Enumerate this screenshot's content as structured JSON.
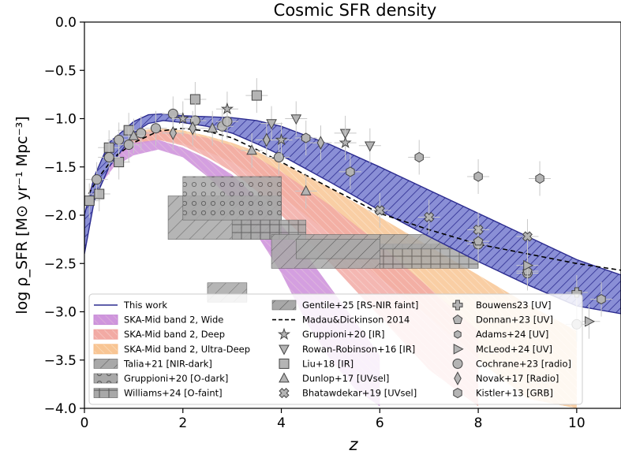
{
  "chart_data": {
    "type": "line",
    "title": "Cosmic SFR density",
    "xlabel": "z",
    "ylabel": "log ρ_SFR [M⊙ yr⁻¹ Mpc⁻³]",
    "xlim": [
      0,
      10.9
    ],
    "ylim": [
      -4.0,
      0.0
    ],
    "xticks": [
      "0",
      "2",
      "4",
      "6",
      "8",
      "10"
    ],
    "yticks": [
      "0.0",
      "−0.5",
      "−1.0",
      "−1.5",
      "−2.0",
      "−2.5",
      "−3.0",
      "−3.5",
      "−4.0"
    ],
    "grid": false,
    "legend_position": "bottom",
    "colors": {
      "this_work": "#2b2b8f",
      "wide": "#c58ad6",
      "deep": "#f0a5a0",
      "ultradeep": "#f7c08c",
      "markers": "#b0b0b0"
    },
    "this_work_band": {
      "z": [
        0,
        0.2,
        0.5,
        0.8,
        1.0,
        1.3,
        1.6,
        2.0,
        2.5,
        3.0,
        3.5,
        4.0,
        5.0,
        6.0,
        7.0,
        8.0,
        9.0,
        10.0,
        10.9
      ],
      "upper": [
        -2.0,
        -1.6,
        -1.25,
        -1.12,
        -1.03,
        -0.96,
        -0.95,
        -0.97,
        -0.98,
        -0.99,
        -1.02,
        -1.08,
        -1.27,
        -1.5,
        -1.74,
        -1.98,
        -2.22,
        -2.46,
        -2.62
      ],
      "lower": [
        -2.4,
        -1.85,
        -1.5,
        -1.3,
        -1.15,
        -1.05,
        -1.02,
        -1.04,
        -1.08,
        -1.15,
        -1.26,
        -1.38,
        -1.66,
        -1.95,
        -2.22,
        -2.48,
        -2.72,
        -2.94,
        -3.02
      ]
    },
    "ska_wide_band": {
      "z": [
        0.1,
        0.3,
        0.6,
        1.0,
        1.5,
        2.0,
        2.5,
        3.0,
        3.5,
        4.0,
        4.5,
        5.0,
        5.5,
        6.0
      ],
      "upper": [
        -1.8,
        -1.55,
        -1.35,
        -1.25,
        -1.22,
        -1.3,
        -1.42,
        -1.58,
        -1.82,
        -2.1,
        -2.4,
        -2.75,
        -3.1,
        -3.45
      ],
      "lower": [
        -1.95,
        -1.7,
        -1.5,
        -1.38,
        -1.32,
        -1.4,
        -1.6,
        -1.85,
        -2.2,
        -2.6,
        -3.1,
        -3.5,
        -3.8,
        -3.98
      ]
    },
    "ska_deep_band": {
      "z": [
        0.1,
        0.5,
        1.0,
        1.5,
        2.0,
        2.5,
        3.0,
        3.5,
        4.0,
        5.0,
        6.0,
        7.0,
        8.0
      ],
      "upper": [
        -1.75,
        -1.25,
        -1.15,
        -1.12,
        -1.15,
        -1.2,
        -1.28,
        -1.4,
        -1.55,
        -1.9,
        -2.3,
        -2.75,
        -3.2
      ],
      "lower": [
        -1.9,
        -1.45,
        -1.28,
        -1.22,
        -1.28,
        -1.4,
        -1.55,
        -1.75,
        -2.0,
        -2.5,
        -3.05,
        -3.6,
        -3.98
      ]
    },
    "ska_ultradeep_band": {
      "z": [
        0.1,
        0.5,
        1.0,
        1.5,
        2.0,
        2.5,
        3.0,
        3.5,
        4.0,
        5.0,
        6.0,
        7.0,
        8.0,
        9.0,
        10.0
      ],
      "upper": [
        -1.75,
        -1.25,
        -1.13,
        -1.1,
        -1.12,
        -1.18,
        -1.25,
        -1.34,
        -1.46,
        -1.72,
        -2.02,
        -2.32,
        -2.62,
        -2.92,
        -3.2
      ],
      "lower": [
        -1.9,
        -1.45,
        -1.28,
        -1.22,
        -1.26,
        -1.34,
        -1.45,
        -1.6,
        -1.8,
        -2.2,
        -2.65,
        -3.05,
        -3.5,
        -3.9,
        -4.0
      ]
    },
    "madau_dickinson": {
      "z": [
        0,
        0.3,
        0.6,
        1.0,
        1.5,
        2.0,
        2.5,
        3.0,
        3.5,
        4.0,
        5.0,
        6.0,
        7.0,
        8.0,
        9.0,
        10.0,
        10.9
      ],
      "y": [
        -1.85,
        -1.6,
        -1.4,
        -1.25,
        -1.13,
        -1.1,
        -1.13,
        -1.2,
        -1.32,
        -1.45,
        -1.72,
        -1.98,
        -2.15,
        -2.3,
        -2.4,
        -2.5,
        -2.57
      ]
    },
    "rect_regions": [
      {
        "name": "Talia+21 [NIR-dark]",
        "z0": 1.7,
        "z1": 4.0,
        "y0": -2.25,
        "y1": -1.8,
        "hatch": "diag"
      },
      {
        "name": "Talia+21 [NIR-dark]",
        "z0": 2.5,
        "z1": 3.3,
        "y0": -2.9,
        "y1": -2.7,
        "hatch": "diag"
      },
      {
        "name": "Gruppioni+20 [O-dark]",
        "z0": 2.0,
        "z1": 4.0,
        "y0": -2.05,
        "y1": -1.6,
        "hatch": "dots"
      },
      {
        "name": "Williams+24 [O-faint]",
        "z0": 3.0,
        "z1": 4.5,
        "y0": -2.25,
        "y1": -2.05,
        "hatch": "horiz"
      },
      {
        "name": "Gentile+25 [RS-NIR faint]",
        "z0": 3.8,
        "z1": 6.0,
        "y0": -2.55,
        "y1": -2.2,
        "hatch": "diag"
      },
      {
        "name": "Gentile+25 [RS-NIR faint]",
        "z0": 4.3,
        "z1": 6.0,
        "y0": -2.45,
        "y1": -2.25,
        "hatch": "diag"
      },
      {
        "name": "Williams+24 [O-faint]",
        "z0": 6.0,
        "z1": 8.0,
        "y0": -2.55,
        "y1": -2.3,
        "hatch": "horiz"
      },
      {
        "name": "Talia+21 [NIR-dark]",
        "z0": 6.0,
        "z1": 7.5,
        "y0": -2.35,
        "y1": -2.2,
        "hatch": "diag"
      }
    ],
    "points": [
      {
        "z": 0.1,
        "y": -1.85,
        "m": "square"
      },
      {
        "z": 0.3,
        "y": -1.78,
        "m": "square"
      },
      {
        "z": 0.5,
        "y": -1.3,
        "m": "square"
      },
      {
        "z": 0.7,
        "y": -1.45,
        "m": "square"
      },
      {
        "z": 0.9,
        "y": -1.12,
        "m": "square"
      },
      {
        "z": 2.25,
        "y": -0.8,
        "m": "square"
      },
      {
        "z": 3.5,
        "y": -0.76,
        "m": "square"
      },
      {
        "z": 0.25,
        "y": -1.63,
        "m": "circle"
      },
      {
        "z": 0.5,
        "y": -1.4,
        "m": "circle"
      },
      {
        "z": 0.7,
        "y": -1.22,
        "m": "circle"
      },
      {
        "z": 0.9,
        "y": -1.27,
        "m": "circle"
      },
      {
        "z": 1.15,
        "y": -1.15,
        "m": "circle"
      },
      {
        "z": 1.45,
        "y": -1.1,
        "m": "circle"
      },
      {
        "z": 1.8,
        "y": -0.95,
        "m": "circle"
      },
      {
        "z": 2.25,
        "y": -1.02,
        "m": "circle"
      },
      {
        "z": 2.8,
        "y": -1.08,
        "m": "circle"
      },
      {
        "z": 2.9,
        "y": -1.03,
        "m": "circle"
      },
      {
        "z": 3.95,
        "y": -1.4,
        "m": "circle"
      },
      {
        "z": 8.0,
        "y": -2.3,
        "m": "circle"
      },
      {
        "z": 9.0,
        "y": -2.6,
        "m": "circle"
      },
      {
        "z": 1.0,
        "y": -1.18,
        "m": "triangle"
      },
      {
        "z": 2.6,
        "y": -1.1,
        "m": "triangle"
      },
      {
        "z": 3.4,
        "y": -1.33,
        "m": "triangle"
      },
      {
        "z": 4.5,
        "y": -1.75,
        "m": "triangle"
      },
      {
        "z": 3.8,
        "y": -1.05,
        "m": "tri-down"
      },
      {
        "z": 4.3,
        "y": -1.0,
        "m": "tri-down"
      },
      {
        "z": 5.3,
        "y": -1.15,
        "m": "tri-down"
      },
      {
        "z": 5.8,
        "y": -1.28,
        "m": "tri-down"
      },
      {
        "z": 2.9,
        "y": -0.9,
        "m": "star"
      },
      {
        "z": 2.0,
        "y": -1.0,
        "m": "star"
      },
      {
        "z": 4.0,
        "y": -1.22,
        "m": "star"
      },
      {
        "z": 5.3,
        "y": -1.25,
        "m": "star"
      },
      {
        "z": 1.8,
        "y": -1.15,
        "m": "diamond"
      },
      {
        "z": 2.2,
        "y": -1.1,
        "m": "diamond"
      },
      {
        "z": 3.7,
        "y": -1.22,
        "m": "diamond"
      },
      {
        "z": 4.8,
        "y": -1.25,
        "m": "diamond"
      },
      {
        "z": 4.5,
        "y": -1.2,
        "m": "hexagon"
      },
      {
        "z": 5.4,
        "y": -1.55,
        "m": "hexagon"
      },
      {
        "z": 6.8,
        "y": -1.4,
        "m": "hexagon"
      },
      {
        "z": 8.0,
        "y": -1.6,
        "m": "hexagon"
      },
      {
        "z": 9.25,
        "y": -1.62,
        "m": "hexagon"
      },
      {
        "z": 10.5,
        "y": -2.87,
        "m": "hexagon"
      },
      {
        "z": 6.0,
        "y": -1.95,
        "m": "cross"
      },
      {
        "z": 7.0,
        "y": -2.02,
        "m": "cross"
      },
      {
        "z": 8.0,
        "y": -2.15,
        "m": "cross"
      },
      {
        "z": 9.0,
        "y": -2.22,
        "m": "cross"
      },
      {
        "z": 8.0,
        "y": -2.27,
        "m": "pentagon"
      },
      {
        "z": 9.0,
        "y": -2.58,
        "m": "pentagon"
      },
      {
        "z": 9.0,
        "y": -2.52,
        "m": "tri-right"
      },
      {
        "z": 10.25,
        "y": -3.1,
        "m": "tri-right"
      },
      {
        "z": 10.0,
        "y": -2.8,
        "m": "plus"
      },
      {
        "z": 10.0,
        "y": -3.13,
        "m": "circle"
      }
    ],
    "legend": {
      "col1": [
        {
          "label": "This work",
          "kind": "line",
          "color": "#2b2b8f"
        },
        {
          "label": "SKA-Mid band 2, Wide",
          "kind": "band",
          "color": "#c58ad6"
        },
        {
          "label": "SKA-Mid band 2, Deep",
          "kind": "band",
          "color": "#f0a5a0"
        },
        {
          "label": "SKA-Mid band 2, Ultra-Deep",
          "kind": "band",
          "color": "#f7c08c"
        },
        {
          "label": "Talia+21 [NIR-dark]",
          "kind": "hatch",
          "hatch": "diag"
        },
        {
          "label": "Gruppioni+20 [O-dark]",
          "kind": "hatch",
          "hatch": "dots"
        },
        {
          "label": "Williams+24 [O-faint]",
          "kind": "hatch",
          "hatch": "horiz"
        }
      ],
      "col2": [
        {
          "label": "Gentile+25 [RS-NIR faint]",
          "kind": "hatch",
          "hatch": "diag"
        },
        {
          "label": "Madau&Dickinson 2014",
          "kind": "dash"
        },
        {
          "label": "Gruppioni+20 [IR]",
          "kind": "marker",
          "m": "star"
        },
        {
          "label": "Rowan-Robinson+16 [IR]",
          "kind": "marker",
          "m": "tri-down"
        },
        {
          "label": "Liu+18 [IR]",
          "kind": "marker",
          "m": "square"
        },
        {
          "label": "Dunlop+17 [UVsel]",
          "kind": "marker",
          "m": "triangle"
        },
        {
          "label": "Bhatawdekar+19 [UVsel]",
          "kind": "marker",
          "m": "cross"
        }
      ],
      "col3": [
        {
          "label": "Bouwens23 [UV]",
          "kind": "marker",
          "m": "plus"
        },
        {
          "label": "Donnan+23 [UV]",
          "kind": "marker",
          "m": "pentagon"
        },
        {
          "label": "Adams+24 [UV]",
          "kind": "marker",
          "m": "hexagon-small"
        },
        {
          "label": "McLeod+24 [UV]",
          "kind": "marker",
          "m": "tri-right"
        },
        {
          "label": "Cochrane+23 [radio]",
          "kind": "marker",
          "m": "circle"
        },
        {
          "label": "Novak+17 [Radio]",
          "kind": "marker",
          "m": "diamond"
        },
        {
          "label": "Kistler+13 [GRB]",
          "kind": "marker",
          "m": "hexagon"
        }
      ]
    }
  }
}
